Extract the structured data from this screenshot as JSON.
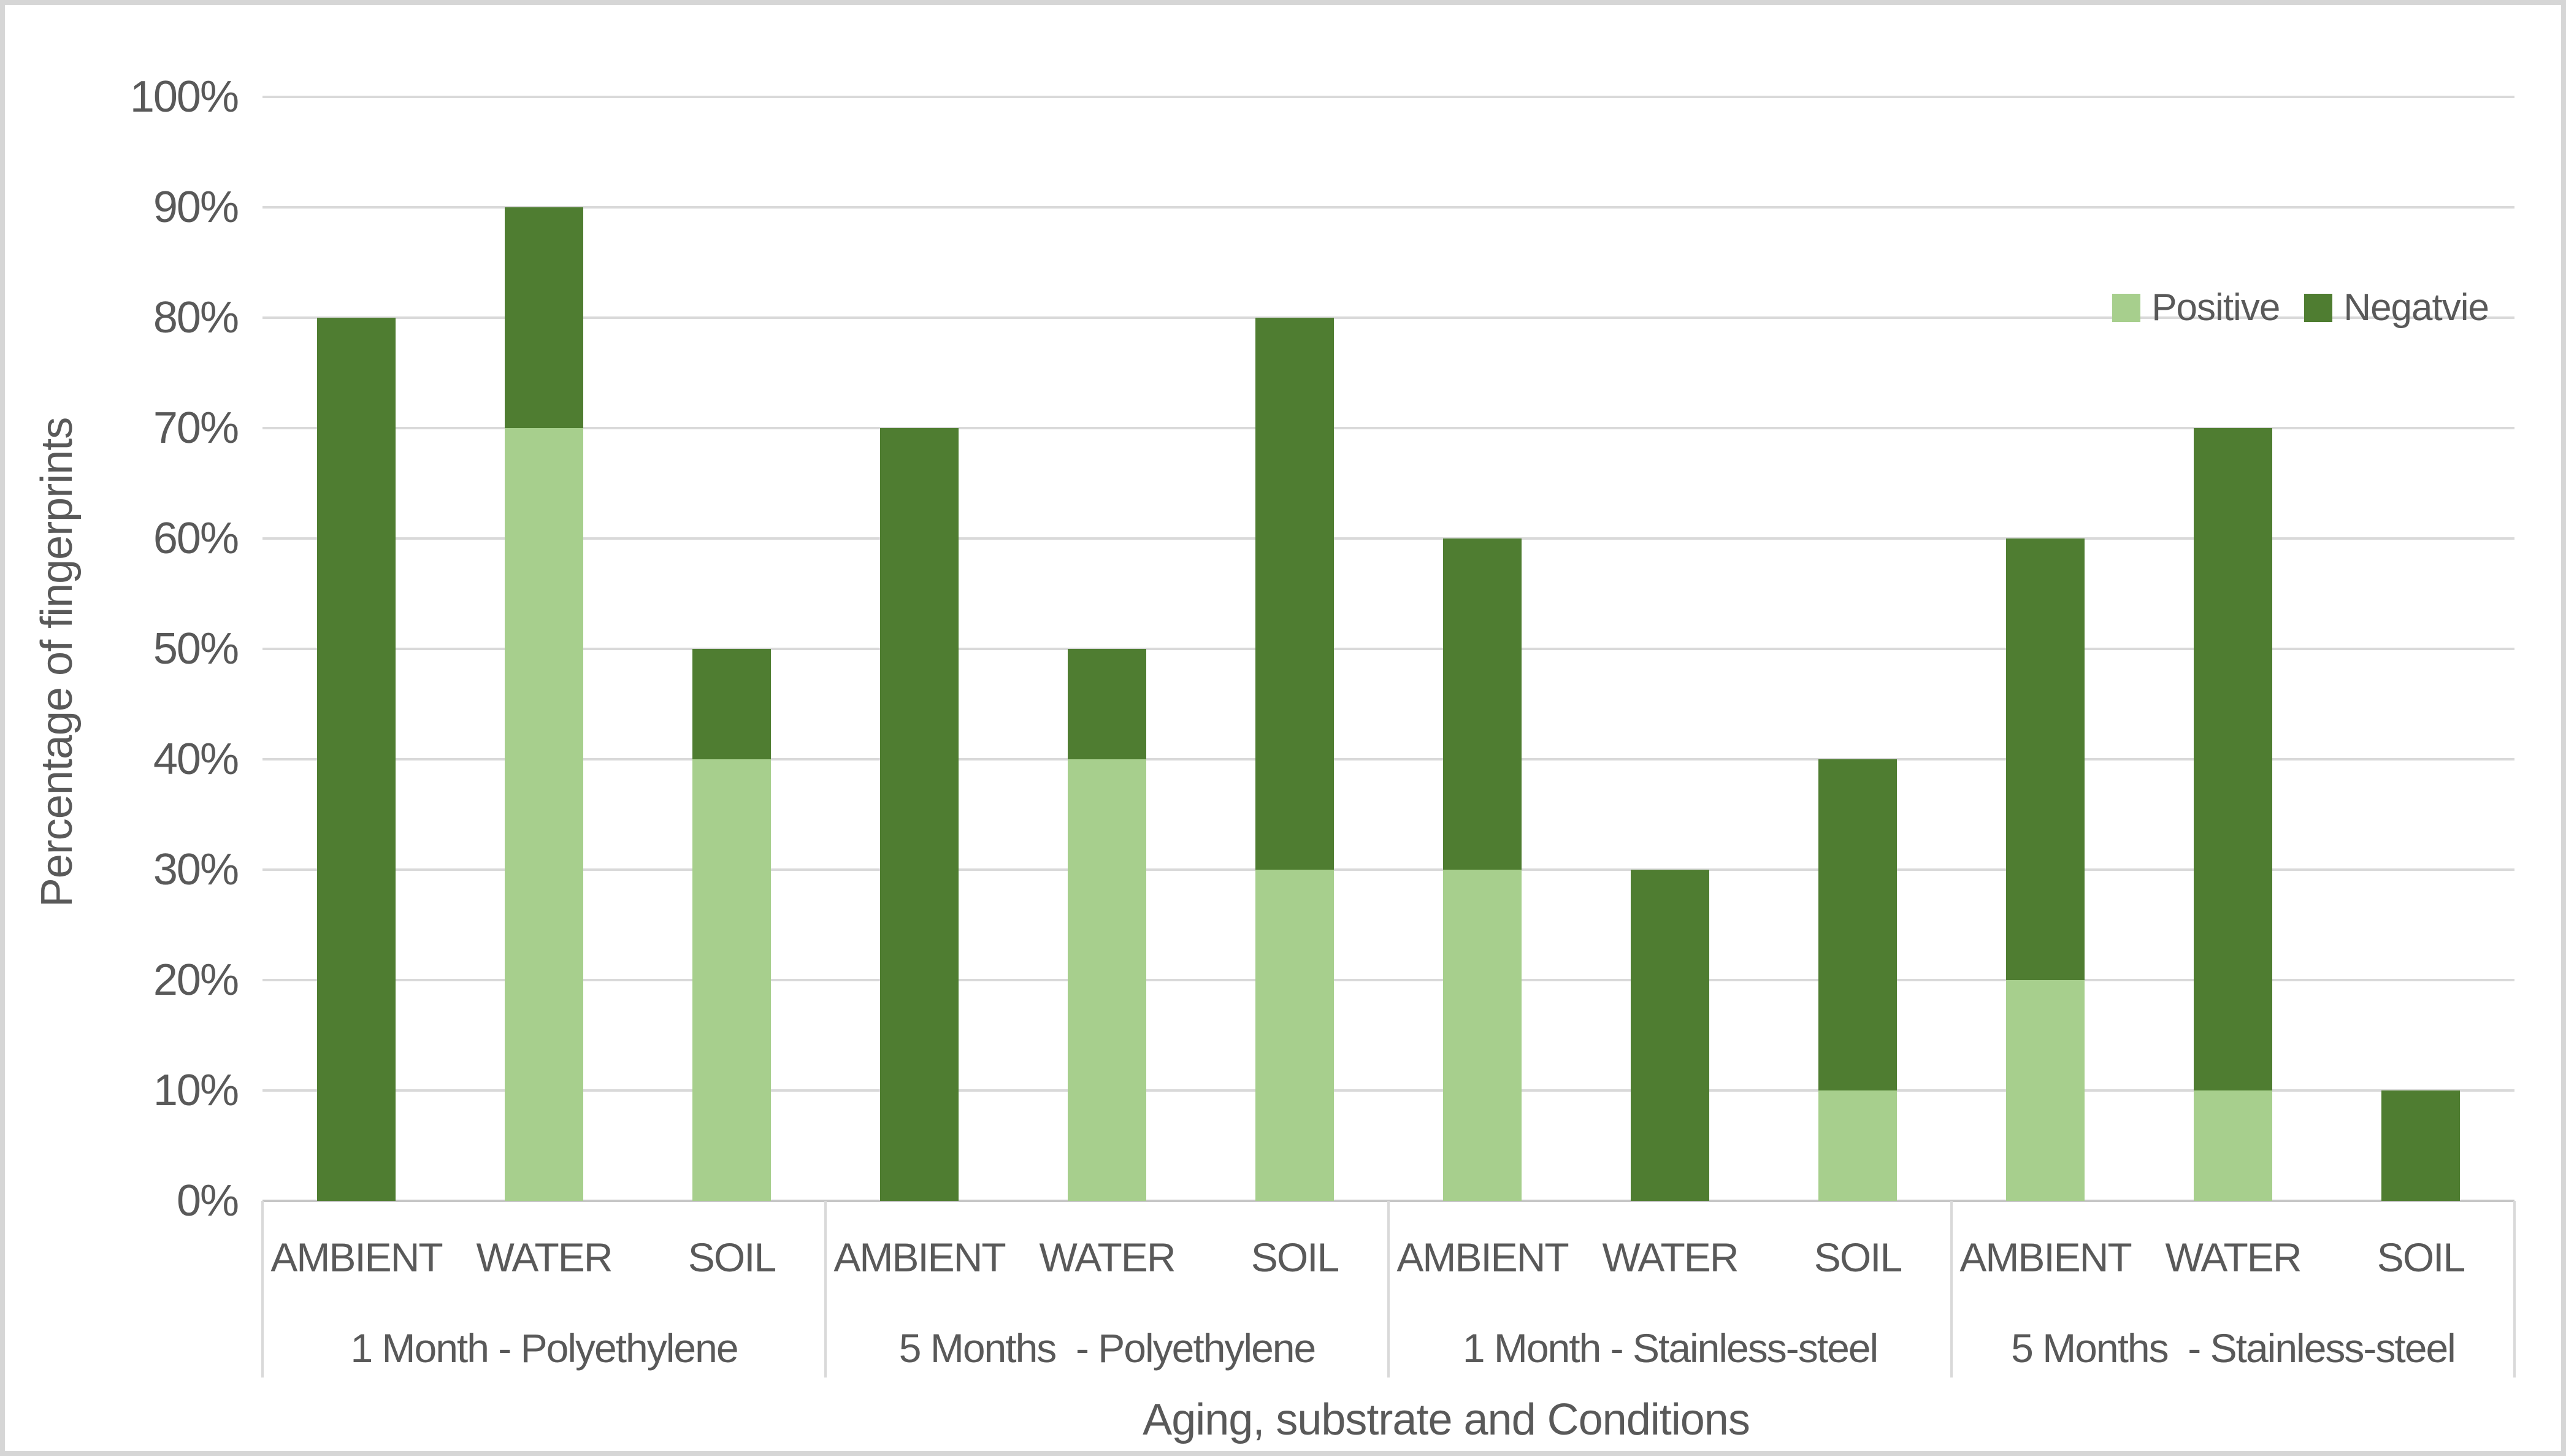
{
  "chart_data": {
    "type": "bar",
    "stacked": true,
    "title": "",
    "xlabel": "Aging, substrate and Conditions",
    "ylabel": "Percentage of fingerprints",
    "ylim": [
      0,
      100
    ],
    "grid": "horizontal",
    "legend_position": "top-right-inside",
    "y_ticks": [
      "0%",
      "10%",
      "20%",
      "30%",
      "40%",
      "50%",
      "60%",
      "70%",
      "80%",
      "90%",
      "100%"
    ],
    "legend": [
      {
        "name": "Positive",
        "color": "#A7CF8D"
      },
      {
        "name": "Negatvie",
        "color": "#4F7D31"
      }
    ],
    "groups": [
      {
        "label": "1 Month - Polyethylene",
        "categories": [
          "AMBIENT",
          "WATER",
          "SOIL"
        ],
        "positive": [
          0,
          70,
          40
        ],
        "negative": [
          80,
          20,
          10
        ]
      },
      {
        "label": "5 Months  - Polyethylene",
        "categories": [
          "AMBIENT",
          "WATER",
          "SOIL"
        ],
        "positive": [
          0,
          40,
          30
        ],
        "negative": [
          70,
          10,
          50
        ]
      },
      {
        "label": "1 Month - Stainless-steel",
        "categories": [
          "AMBIENT",
          "WATER",
          "SOIL"
        ],
        "positive": [
          30,
          0,
          10
        ],
        "negative": [
          30,
          30,
          30
        ]
      },
      {
        "label": "5 Months  - Stainless-steel",
        "categories": [
          "AMBIENT",
          "WATER",
          "SOIL"
        ],
        "positive": [
          20,
          10,
          0
        ],
        "negative": [
          40,
          60,
          10
        ]
      }
    ],
    "palette": {
      "text": "#595959",
      "gridline": "#D9D9D9",
      "axis_line": "#C6C6C6",
      "frame_border": "#D6D6D6"
    }
  }
}
